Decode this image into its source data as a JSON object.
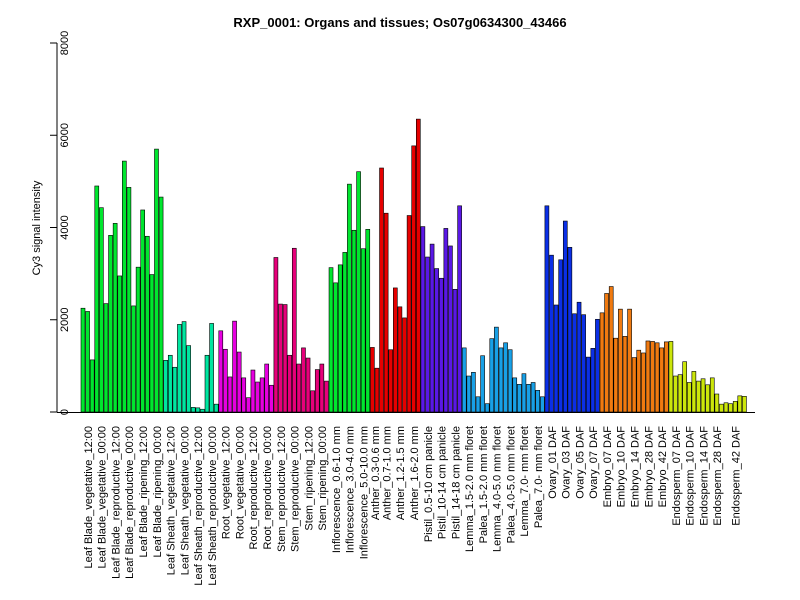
{
  "chart_data": {
    "type": "bar",
    "title": "RXP_0001: Organs and tissues; Os07g0634300_43466",
    "ylabel": "Cy3 signal intensity",
    "xlabel": "",
    "ylim": [
      0,
      8000
    ],
    "yticks": [
      0,
      2000,
      4000,
      6000,
      8000
    ],
    "grid": false,
    "legend": "none",
    "groups": [
      {
        "label": "Leaf Blade_vegetative_12:00",
        "color": "#00e62e",
        "values": [
          2250,
          2180,
          1130
        ]
      },
      {
        "label": "Leaf Blade_vegetative_00:00",
        "color": "#00e62e",
        "values": [
          4900,
          4430,
          2350
        ]
      },
      {
        "label": "Leaf Blade_reproductive_12:00",
        "color": "#00e62e",
        "values": [
          3830,
          4090,
          2950
        ]
      },
      {
        "label": "Leaf Blade_reproductive_00:00",
        "color": "#00e62e",
        "values": [
          5440,
          4870,
          2300
        ]
      },
      {
        "label": "Leaf Blade_ripening_12:00",
        "color": "#00e62e",
        "values": [
          3140,
          4380,
          3810
        ]
      },
      {
        "label": "Leaf Blade_ripening_00:00",
        "color": "#00e62e",
        "values": [
          2980,
          5700,
          4660
        ]
      },
      {
        "label": "Leaf Sheath_vegetative_12:00",
        "color": "#00e6a0",
        "values": [
          1120,
          1230,
          970
        ]
      },
      {
        "label": "Leaf Sheath_vegetative_00:00",
        "color": "#00e6a0",
        "values": [
          1900,
          1960,
          1440
        ]
      },
      {
        "label": "Leaf Sheath_reproductive_12:00",
        "color": "#00e6a0",
        "values": [
          100,
          90,
          60
        ]
      },
      {
        "label": "Leaf Sheath_reproductive_00:00",
        "color": "#00e6a0",
        "values": [
          1230,
          1920,
          170
        ]
      },
      {
        "label": "Root_vegetative_12:00",
        "color": "#e600e0",
        "values": [
          1760,
          1360,
          760
        ]
      },
      {
        "label": "Root_vegetative_00:00",
        "color": "#e600e0",
        "values": [
          1970,
          1300,
          740
        ]
      },
      {
        "label": "Root_reproductive_12:00",
        "color": "#e600e0",
        "values": [
          310,
          910,
          650
        ]
      },
      {
        "label": "Root_reproductive_00:00",
        "color": "#e600e0",
        "values": [
          740,
          1040,
          580
        ]
      },
      {
        "label": "Stem_reproductive_12:00",
        "color": "#e6007a",
        "values": [
          3350,
          2340,
          2330
        ]
      },
      {
        "label": "Stem_reproductive_00:00",
        "color": "#e6007a",
        "values": [
          1230,
          3550,
          1040
        ]
      },
      {
        "label": "Stem_ripening_12:00",
        "color": "#e6007a",
        "values": [
          1390,
          1170,
          460
        ]
      },
      {
        "label": "Stem_ripening_00:00",
        "color": "#e6007a",
        "values": [
          920,
          1040,
          670
        ]
      },
      {
        "label": "Inflorescence_0.6-1.0 mm",
        "color": "#00e62e",
        "values": [
          3130,
          2800,
          3190
        ]
      },
      {
        "label": "Inflorescence_3.0-4.0 mm",
        "color": "#00e62e",
        "values": [
          3460,
          4940,
          3940
        ]
      },
      {
        "label": "Inflorescence_5.0-10.0 mm",
        "color": "#00e62e",
        "values": [
          5210,
          3540,
          3960
        ]
      },
      {
        "label": "Anther_0.3-0.6 mm",
        "color": "#e60000",
        "values": [
          1400,
          950
        ]
      },
      {
        "label": "Anther_0.7-1.0 mm",
        "color": "#e60000",
        "values": [
          5290,
          4310,
          1350
        ]
      },
      {
        "label": "Anther_1.2-1.5 mm",
        "color": "#e60000",
        "values": [
          2690,
          2280,
          2040
        ]
      },
      {
        "label": "Anther_1.6-2.0 mm",
        "color": "#e60000",
        "values": [
          4260,
          5770,
          6350
        ]
      },
      {
        "label": "Pistil_0.5-10 cm panicle",
        "color": "#5a18e6",
        "values": [
          4020,
          3360,
          3640
        ]
      },
      {
        "label": "Pistil_10-14 cm panicle",
        "color": "#5a18e6",
        "values": [
          3110,
          2900,
          3980
        ]
      },
      {
        "label": "Pistil_14-18 cm panicle",
        "color": "#5a18e6",
        "values": [
          3600,
          2660,
          4470
        ]
      },
      {
        "label": "Lemma_1.5-2.0 mm floret",
        "color": "#18a0e6",
        "values": [
          1390,
          780,
          860
        ]
      },
      {
        "label": "Palea_1.5-2.0 mm floret",
        "color": "#18a0e6",
        "values": [
          330,
          1220,
          180
        ]
      },
      {
        "label": "Lemma_4.0-5.0 mm floret",
        "color": "#18a0e6",
        "values": [
          1590,
          1840,
          1390
        ]
      },
      {
        "label": "Palea_4.0-5.0 mm floret",
        "color": "#18a0e6",
        "values": [
          1500,
          1350,
          740
        ]
      },
      {
        "label": "Lemma_7.0- mm floret",
        "color": "#18a0e6",
        "values": [
          600,
          830,
          600
        ]
      },
      {
        "label": "Palea_7.0- mm floret",
        "color": "#18a0e6",
        "values": [
          640,
          470,
          330
        ]
      },
      {
        "label": "Ovary_01 DAF",
        "color": "#0b2fe6",
        "values": [
          4470,
          3400,
          2320
        ]
      },
      {
        "label": "Ovary_03 DAF",
        "color": "#0b2fe6",
        "values": [
          3300,
          4140,
          3570
        ]
      },
      {
        "label": "Ovary_05 DAF",
        "color": "#0b2fe6",
        "values": [
          2130,
          2380,
          2110
        ]
      },
      {
        "label": "Ovary_07 DAF",
        "color": "#0b2fe6",
        "values": [
          1190,
          1380,
          2010
        ]
      },
      {
        "label": "Embryo_07 DAF",
        "color": "#f07a10",
        "values": [
          2150,
          2570,
          2720
        ]
      },
      {
        "label": "Embryo_10 DAF",
        "color": "#f07a10",
        "values": [
          1600,
          2230,
          1640
        ]
      },
      {
        "label": "Embryo_14 DAF",
        "color": "#f07a10",
        "values": [
          2230,
          1180,
          1340
        ]
      },
      {
        "label": "Embryo_28 DAF",
        "color": "#f07a10",
        "values": [
          1280,
          1540,
          1530
        ]
      },
      {
        "label": "Embryo_42 DAF",
        "color": "#f07a10",
        "values": [
          1500,
          1390,
          1520
        ]
      },
      {
        "label": "Endosperm_07 DAF",
        "color": "#cce60b",
        "values": [
          1530,
          780,
          810
        ]
      },
      {
        "label": "Endosperm_10 DAF",
        "color": "#cce60b",
        "values": [
          1090,
          640,
          880
        ]
      },
      {
        "label": "Endosperm_14 DAF",
        "color": "#cce60b",
        "values": [
          670,
          720,
          590
        ]
      },
      {
        "label": "Endosperm_28 DAF",
        "color": "#cce60b",
        "values": [
          740,
          390,
          170
        ]
      },
      {
        "label": "Endosperm_42 DAF",
        "color": "#cce60b",
        "values": [
          200,
          180,
          230,
          350,
          340
        ]
      }
    ]
  }
}
